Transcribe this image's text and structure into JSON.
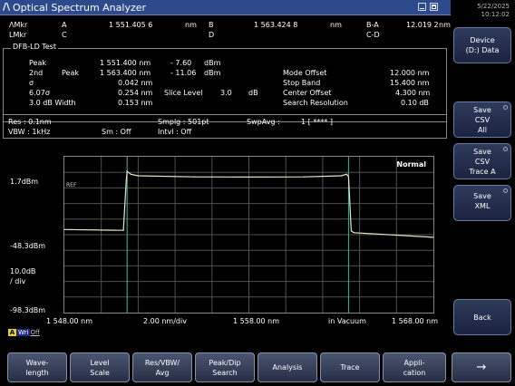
{
  "window": {
    "title": "Optical Spectrum Analyzer"
  },
  "datetime": {
    "date": "5/22/2025",
    "time": "10:12:02"
  },
  "markers": {
    "amkr_label": "ΛMkr",
    "amkr_id": "A",
    "amkr_value": "1 551.405 6",
    "amkr_unit": "nm",
    "b_label": "B",
    "b_value": "1 563.424 8",
    "b_unit": "nm",
    "ba_label": "B-A",
    "ba_value": "12.019 2",
    "ba_unit": "nm",
    "lmkr_label": "LMkr",
    "lmkr_id": "C",
    "d_label": "D",
    "cd_label": "C-D"
  },
  "test": {
    "title": "DFB-LD Test",
    "peak_label": "Peak",
    "peak_value": "1 551.400 nm",
    "peak_level": "-  7.60",
    "peak_level_unit": "dBm",
    "second_label": "2nd",
    "second_peak_label": "Peak",
    "second_value": "1 563.400 nm",
    "second_level": "- 11.06",
    "second_level_unit": "dBm",
    "sigma_label": "σ",
    "sigma_value": "0.042 nm",
    "sigma607_label": "6.07σ",
    "sigma607_value": "0.254 nm",
    "width_label": "3.0   dB Width",
    "width_value": "0.153 nm",
    "slice_label": "Slice Level",
    "slice_value": "3.0",
    "slice_unit": "dB",
    "mode_offset_label": "Mode Offset",
    "mode_offset_value": "12.000 nm",
    "stop_band_label": "Stop Band",
    "stop_band_value": "15.400 nm",
    "center_offset_label": "Center Offset",
    "center_offset_value": "4.300 nm",
    "search_res_label": "Search Resolution",
    "search_res_value": "0.10  dB"
  },
  "conditions": {
    "res": "Res : 0.1nm",
    "vbw": "VBW :  1kHz",
    "sm": "Sm :  Off",
    "smplg": "Smplg :   501pt",
    "intvl": "Intvl :  Off",
    "swpavg": "SwpAvg :",
    "swpavg_value": "1 [   ****  ]"
  },
  "graph": {
    "mode_label": "Normal",
    "ref_marker": "REF",
    "y_top": "1.7dBm",
    "y_mid": "-48.3dBm",
    "y_scale_1": "10.0dB",
    "y_scale_2": "/ div",
    "y_bottom": "-98.3dBm",
    "x_start": "1 548.00 nm",
    "x_div": "2.00 nm/div",
    "x_center": "1 558.00 nm",
    "x_medium": "in Vacuum",
    "x_stop": "1 568.00 nm"
  },
  "chart_data": {
    "type": "line",
    "xlabel": "",
    "ylabel": "",
    "xlim": [
      1548.0,
      1568.0
    ],
    "ylim": [
      -98.3,
      1.7
    ],
    "x_unit": "nm",
    "y_unit": "dBm",
    "series": [
      {
        "x": [
          1548.0,
          1551.2,
          1551.35,
          1551.4,
          1551.6,
          1552.0,
          1555.0,
          1558.0,
          1561.0,
          1563.0,
          1563.3,
          1563.4,
          1563.55,
          1563.7,
          1568.0
        ],
        "y": [
          -45.0,
          -45.5,
          -14.0,
          -7.6,
          -9.5,
          -10.5,
          -11.2,
          -11.3,
          -11.2,
          -10.5,
          -9.5,
          -11.06,
          -46.0,
          -47.0,
          -50.0
        ]
      }
    ],
    "vertical_markers_x": [
      1551.4,
      1563.4
    ]
  },
  "write": {
    "trace": "A",
    "wri": "Wri",
    "state": "Off"
  },
  "softkeys": [
    {
      "line1": "Device",
      "line2": "(D:) Data",
      "line3": ""
    },
    {
      "line1": "Save",
      "line2": "CSV",
      "line3": "All"
    },
    {
      "line1": "Save",
      "line2": "CSV",
      "line3": "Trace A"
    },
    {
      "line1": "Save",
      "line2": "XML",
      "line3": ""
    },
    {
      "line1": "Back",
      "line2": "",
      "line3": ""
    }
  ],
  "function_keys": [
    {
      "line1": "Wave-",
      "line2": "length"
    },
    {
      "line1": "Level",
      "line2": "Scale"
    },
    {
      "line1": "Res/VBW/",
      "line2": "Avg"
    },
    {
      "line1": "Peak/Dip",
      "line2": "Search"
    },
    {
      "line1": "Analysis",
      "line2": ""
    },
    {
      "line1": "Trace",
      "line2": ""
    },
    {
      "line1": "Appli-",
      "line2": "cation"
    },
    {
      "line1": "→",
      "line2": ""
    }
  ],
  "colors": {
    "trace": "#e8e8c8",
    "marker_line": "#30c0a0",
    "title_bar": "#2c4a8c",
    "key": "#262e44"
  }
}
